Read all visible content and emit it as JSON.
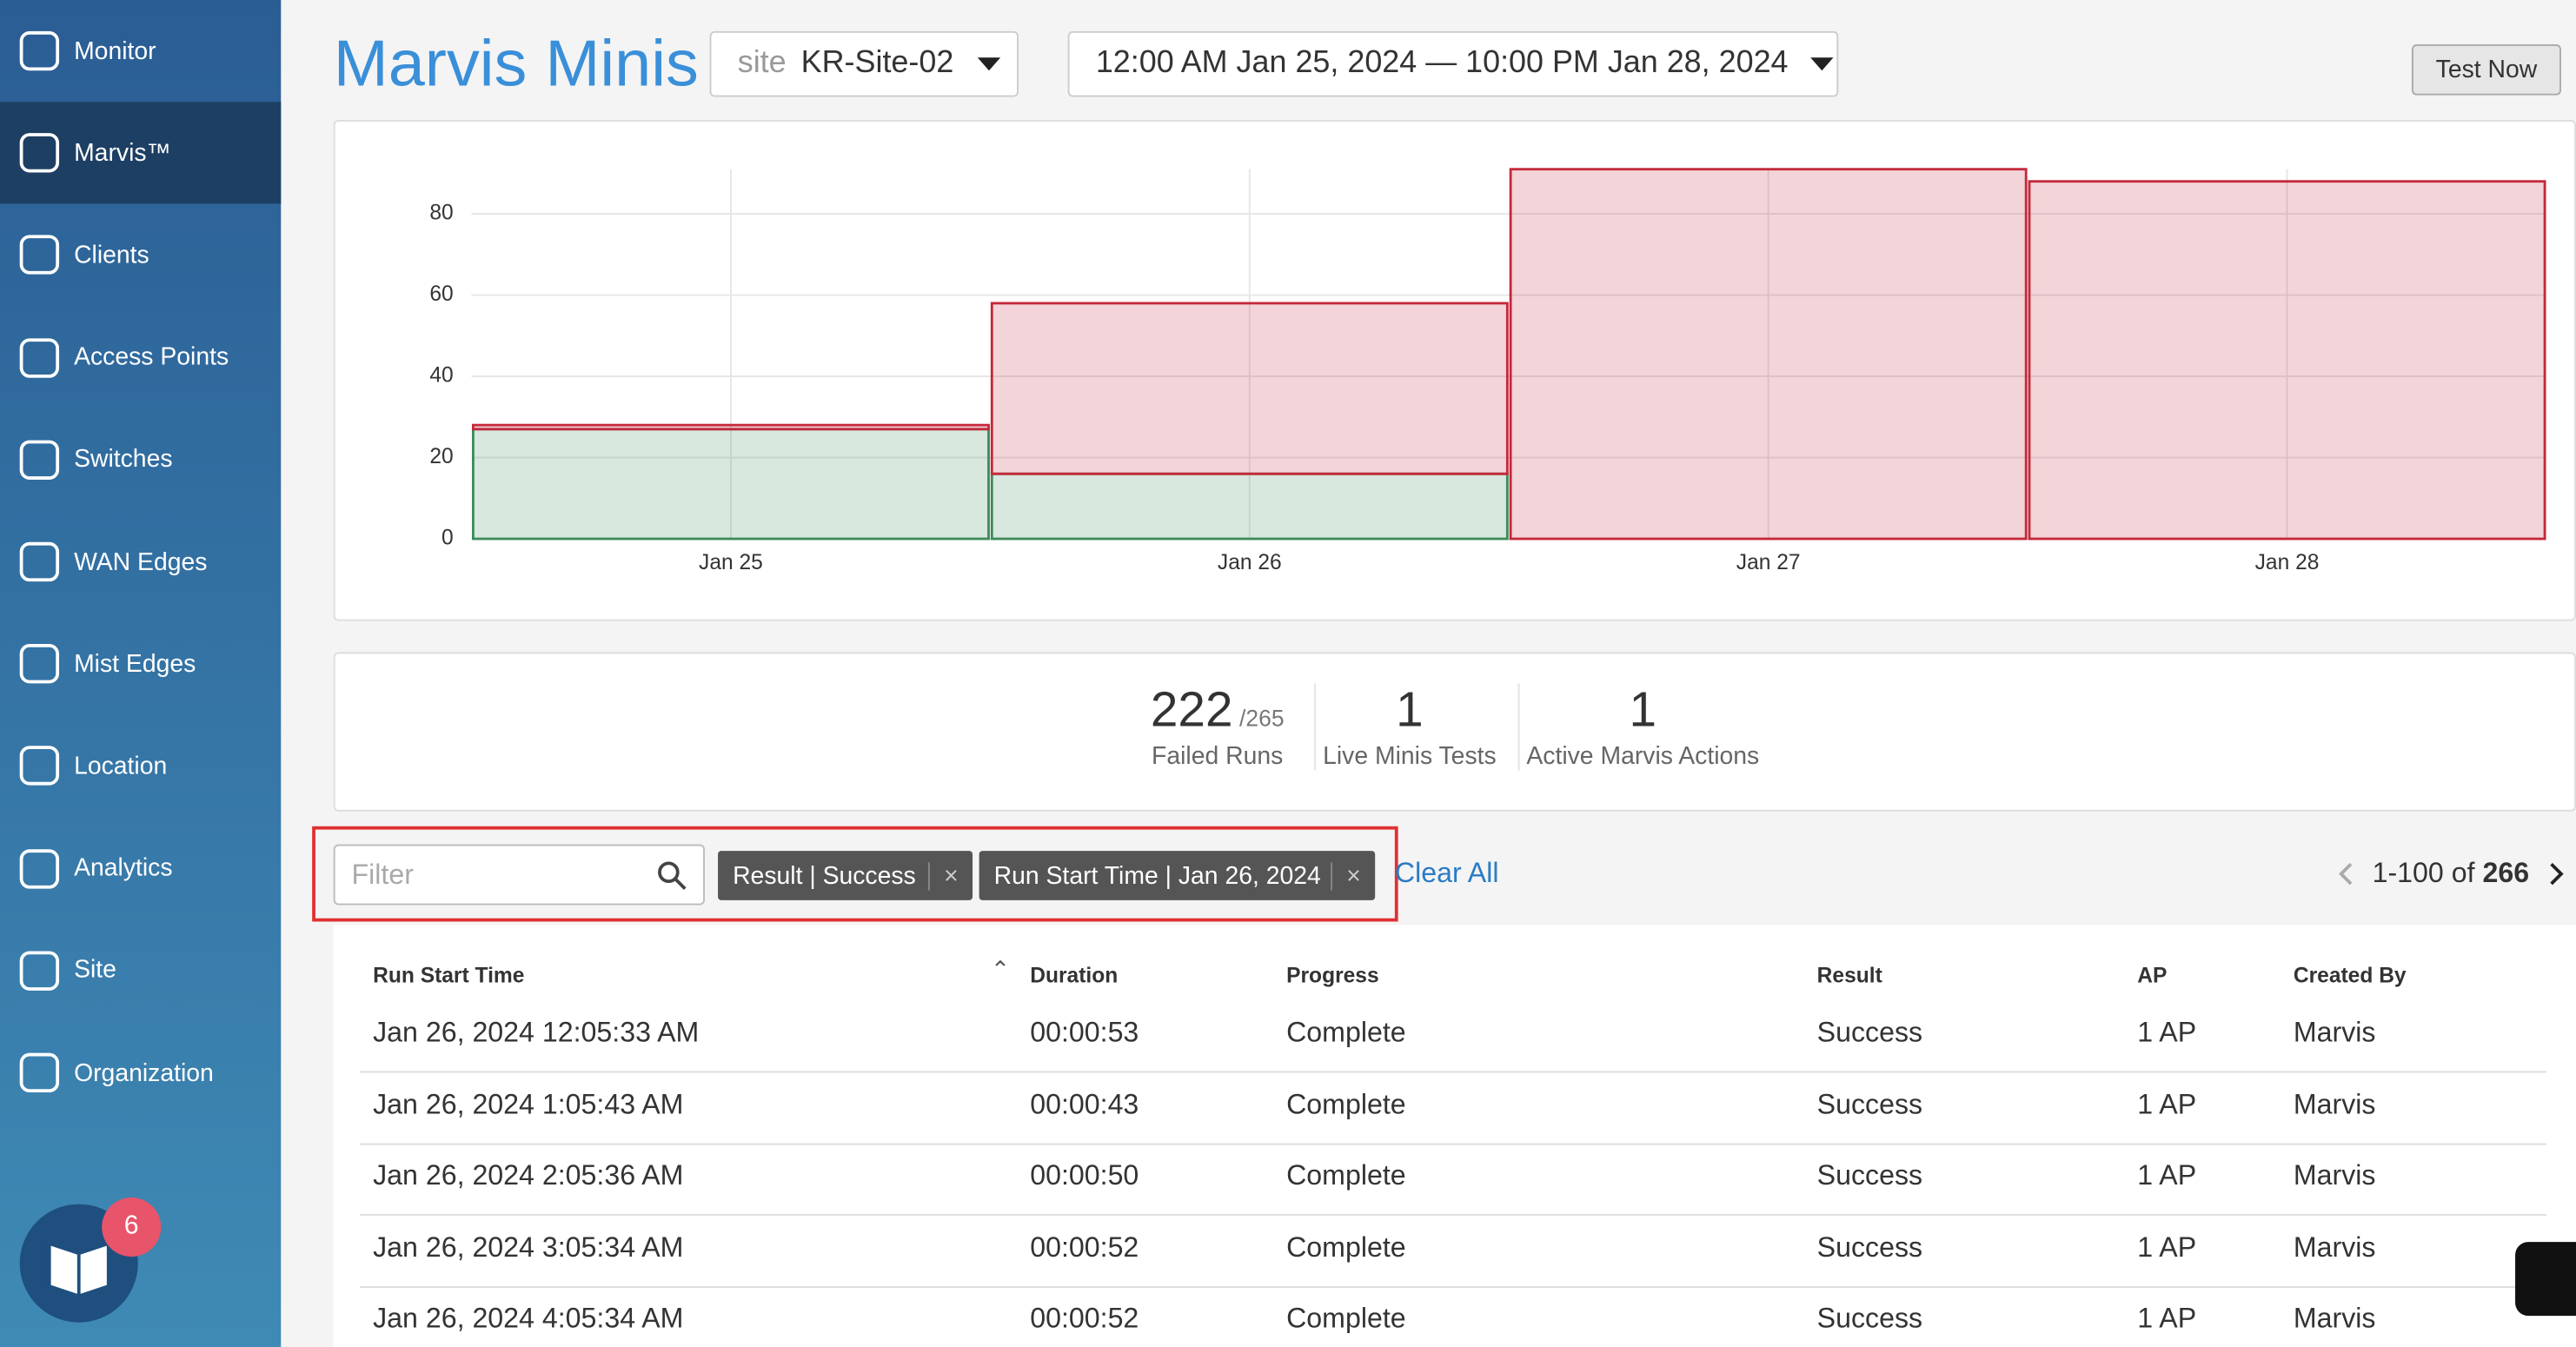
{
  "sidebar": {
    "items": [
      "Monitor",
      "Marvis™",
      "Clients",
      "Access Points",
      "Switches",
      "WAN Edges",
      "Mist Edges",
      "Location",
      "Analytics",
      "Site",
      "Organization"
    ],
    "badge": "6"
  },
  "header": {
    "title": "Marvis Minis",
    "site_label": "site",
    "site": "KR-Site-02",
    "range": "12:00 AM Jan 25, 2024 — 10:00 PM Jan 28, 2024",
    "button": "Test Now"
  },
  "chart_data": {
    "type": "bar",
    "stacked": true,
    "categories": [
      "Jan 25",
      "Jan 26",
      "Jan 27",
      "Jan 28"
    ],
    "series": [
      {
        "color": "#3e8a5a",
        "values": [
          27,
          16,
          0,
          0
        ]
      },
      {
        "color": "#c4283a",
        "values": [
          1,
          42,
          91,
          88
        ]
      }
    ],
    "ylim": [
      0,
      91
    ],
    "yticks": [
      0,
      20,
      40,
      60,
      80
    ],
    "grid": true
  },
  "stats": [
    {
      "value": "222",
      "total": "/265",
      "label": "Failed Runs"
    },
    {
      "value": "1",
      "label": "Live Minis Tests"
    },
    {
      "value": "1",
      "label": "Active Marvis Actions"
    }
  ],
  "filters": {
    "placeholder": "Filter",
    "chips": [
      "Result | Success",
      "Run Start Time | Jan 26, 2024"
    ],
    "clear": "Clear All",
    "range": "1-100 of",
    "total": "266"
  },
  "table": {
    "columns": [
      "Run Start Time",
      "Duration",
      "Progress",
      "Result",
      "AP",
      "Created By"
    ],
    "rows": [
      [
        "Jan 26, 2024 12:05:33 AM",
        "00:00:53",
        "Complete",
        "Success",
        "1 AP",
        "Marvis"
      ],
      [
        "Jan 26, 2024 1:05:43 AM",
        "00:00:43",
        "Complete",
        "Success",
        "1 AP",
        "Marvis"
      ],
      [
        "Jan 26, 2024 2:05:36 AM",
        "00:00:50",
        "Complete",
        "Success",
        "1 AP",
        "Marvis"
      ],
      [
        "Jan 26, 2024 3:05:34 AM",
        "00:00:52",
        "Complete",
        "Success",
        "1 AP",
        "Marvis"
      ],
      [
        "Jan 26, 2024 4:05:34 AM",
        "00:00:52",
        "Complete",
        "Success",
        "1 AP",
        "Marvis"
      ]
    ]
  }
}
